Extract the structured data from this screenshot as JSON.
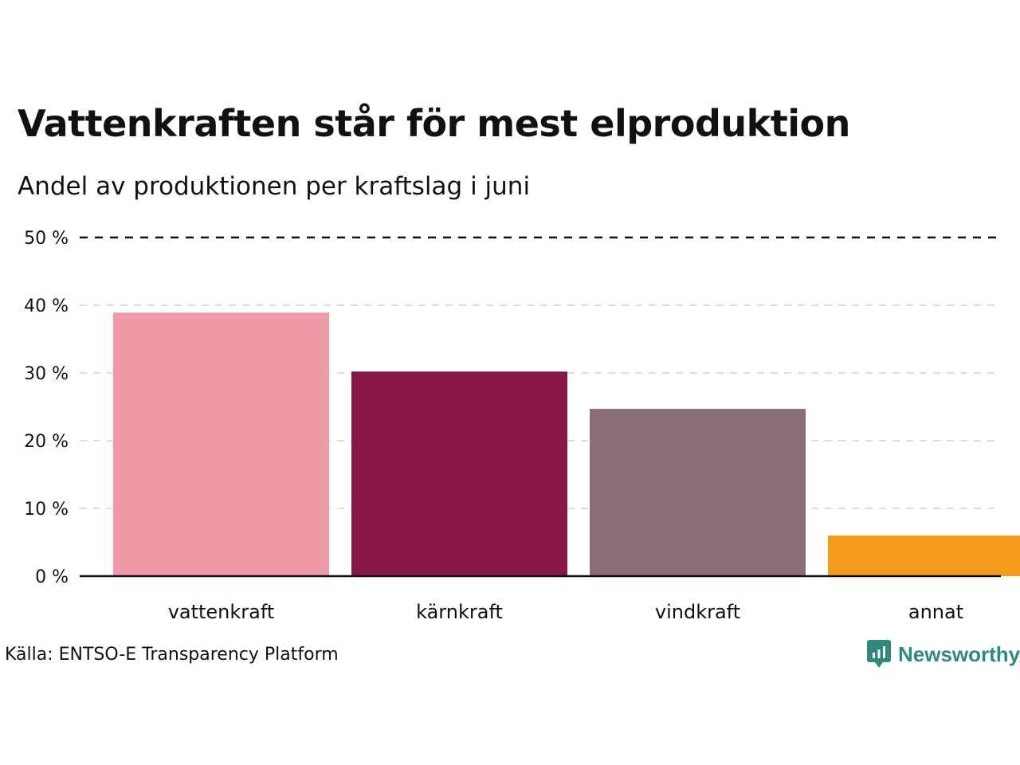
{
  "header": {
    "title": "Vattenkraften står för mest elproduktion",
    "subtitle": "Andel av produktionen per kraftslag i juni"
  },
  "footer": {
    "source": "Källa: ENTSO-E Transparency Platform",
    "logo_text": "Newsworthy"
  },
  "chart_data": {
    "type": "bar",
    "categories": [
      "vattenkraft",
      "kärnkraft",
      "vindkraft",
      "annat"
    ],
    "values": [
      38.9,
      30.2,
      24.7,
      6.0
    ],
    "colors": [
      "#ee9aa8",
      "#861646",
      "#8a6d75",
      "#f59c1b"
    ],
    "ylim": [
      0,
      50
    ],
    "yticks": [
      0,
      10,
      20,
      30,
      40,
      50
    ],
    "ytick_labels": [
      "0 %",
      "10 %",
      "20 %",
      "30 %",
      "40 %",
      "50 %"
    ],
    "grid": true,
    "top_gridline_style": "dashed-black"
  }
}
